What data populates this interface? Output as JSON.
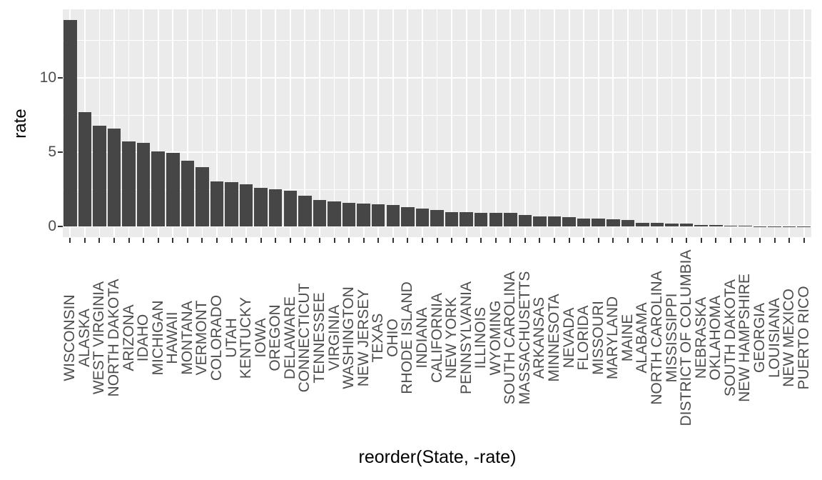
{
  "chart_data": {
    "type": "bar",
    "title": "",
    "xlabel": "reorder(State, -rate)",
    "ylabel": "rate",
    "categories": [
      "WISCONSIN",
      "ALASKA",
      "WEST VIRGINIA",
      "NORTH DAKOTA",
      "ARIZONA",
      "IDAHO",
      "MICHIGAN",
      "HAWAII",
      "MONTANA",
      "VERMONT",
      "COLORADO",
      "UTAH",
      "KENTUCKY",
      "IOWA",
      "OREGON",
      "DELAWARE",
      "CONNECTICUT",
      "TENNESSEE",
      "VIRGINIA",
      "WASHINGTON",
      "NEW JERSEY",
      "TEXAS",
      "OHIO",
      "RHODE ISLAND",
      "INDIANA",
      "CALIFORNIA",
      "NEW YORK",
      "PENNSYLVANIA",
      "ILLINOIS",
      "WYOMING",
      "SOUTH CAROLINA",
      "MASSACHUSETTS",
      "ARKANSAS",
      "MINNESOTA",
      "NEVADA",
      "FLORIDA",
      "MISSOURI",
      "MARYLAND",
      "MAINE",
      "ALABAMA",
      "NORTH CAROLINA",
      "MISSISSIPPI",
      "DISTRICT OF COLUMBIA",
      "NEBRASKA",
      "OKLAHOMA",
      "SOUTH DAKOTA",
      "NEW HAMPSHIRE",
      "GEORGIA",
      "LOUISIANA",
      "NEW MEXICO",
      "PUERTO RICO"
    ],
    "values": [
      13.9,
      7.7,
      6.8,
      6.6,
      5.75,
      5.65,
      5.05,
      4.95,
      4.45,
      4.0,
      3.05,
      3.0,
      2.85,
      2.6,
      2.5,
      2.4,
      2.1,
      1.8,
      1.7,
      1.6,
      1.55,
      1.5,
      1.45,
      1.3,
      1.2,
      1.1,
      1.0,
      0.97,
      0.95,
      0.95,
      0.92,
      0.78,
      0.7,
      0.68,
      0.62,
      0.56,
      0.55,
      0.5,
      0.43,
      0.26,
      0.25,
      0.21,
      0.2,
      0.11,
      0.1,
      0.08,
      0.07,
      0.035,
      0.03,
      0.015,
      0.005
    ],
    "y_major_ticks": [
      0,
      5,
      10
    ],
    "y_minor_ticks": [
      2.5,
      7.5,
      12.5
    ],
    "ylim": [
      -0.7,
      14.6
    ],
    "grid": true,
    "legend_position": "none",
    "colors": {
      "bar_fill": "#464646",
      "panel_background": "#ebebeb",
      "grid": "#ffffff",
      "axis_text": "#4d4d4d",
      "axis_title": "#000000",
      "tick_mark": "#333333",
      "page_background": "#ffffff"
    }
  }
}
